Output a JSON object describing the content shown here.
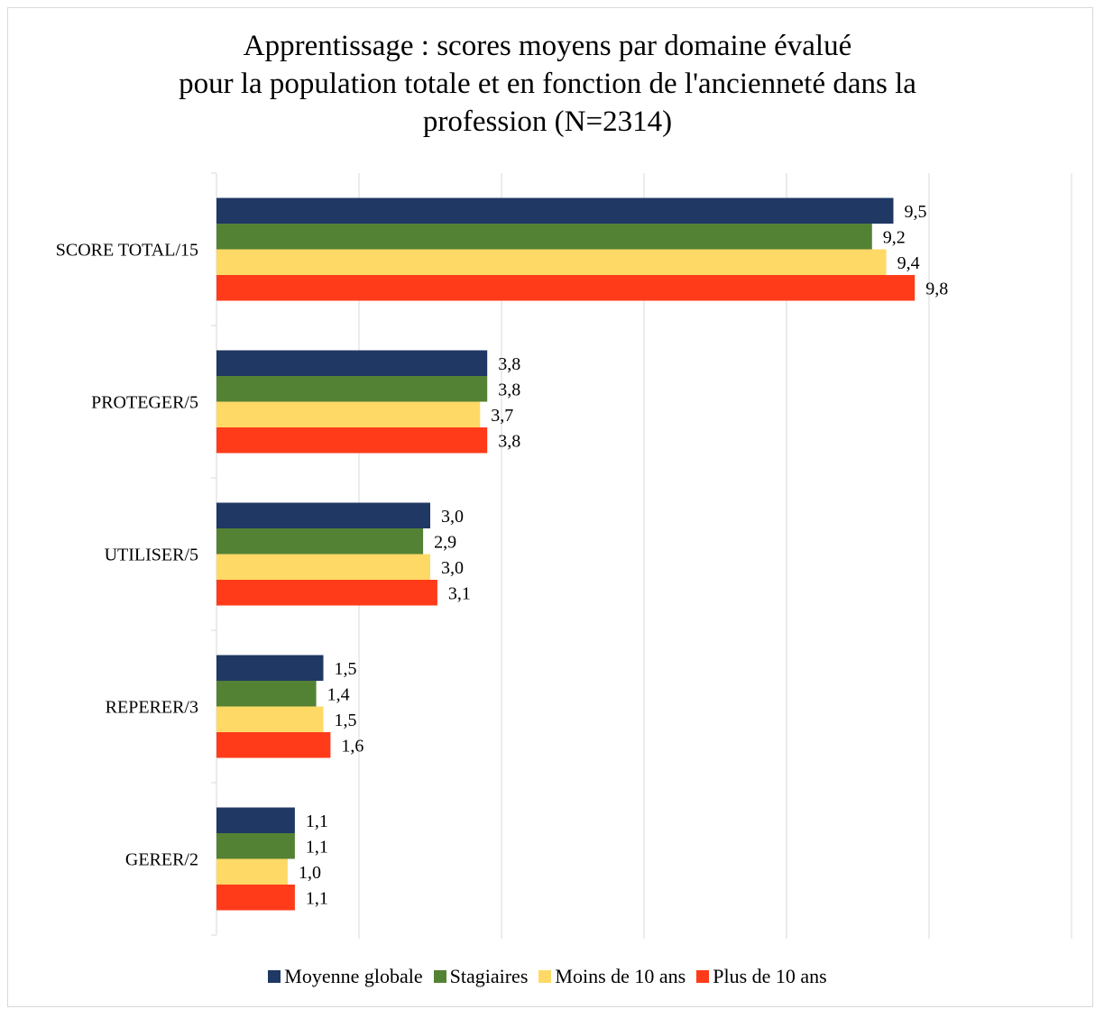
{
  "chart_data": {
    "type": "bar",
    "orientation": "horizontal",
    "title_lines": [
      "Apprentissage : scores moyens par domaine évalué",
      "pour la population totale et en fonction de l'ancienneté dans la",
      "profession (N=2314)"
    ],
    "categories": [
      "SCORE TOTAL/15",
      "PROTEGER/5",
      "UTILISER/5",
      "REPERER/3",
      "GERER/2"
    ],
    "series": [
      {
        "name": "Moyenne globale",
        "color": "#1f3864",
        "values": [
          9.5,
          3.8,
          3.0,
          1.5,
          1.1
        ],
        "labels": [
          "9,5",
          "3,8",
          "3,0",
          "1,5",
          "1,1"
        ]
      },
      {
        "name": "Stagiaires",
        "color": "#548235",
        "values": [
          9.2,
          3.8,
          2.9,
          1.4,
          1.1
        ],
        "labels": [
          "9,2",
          "3,8",
          "2,9",
          "1,4",
          "1,1"
        ]
      },
      {
        "name": "Moins de 10 ans",
        "color": "#ffd966",
        "values": [
          9.4,
          3.7,
          3.0,
          1.5,
          1.0
        ],
        "labels": [
          "9,4",
          "3,7",
          "3,0",
          "1,5",
          "1,0"
        ]
      },
      {
        "name": "Plus de 10 ans",
        "color": "#ff3b1a",
        "values": [
          9.8,
          3.8,
          3.1,
          1.6,
          1.1
        ],
        "labels": [
          "9,8",
          "3,8",
          "3,1",
          "1,6",
          "1,1"
        ]
      }
    ],
    "xlim": [
      0,
      12
    ],
    "x_grid_step": 2,
    "grid": true,
    "xlabel": "",
    "ylabel": "",
    "legend_position": "bottom"
  }
}
